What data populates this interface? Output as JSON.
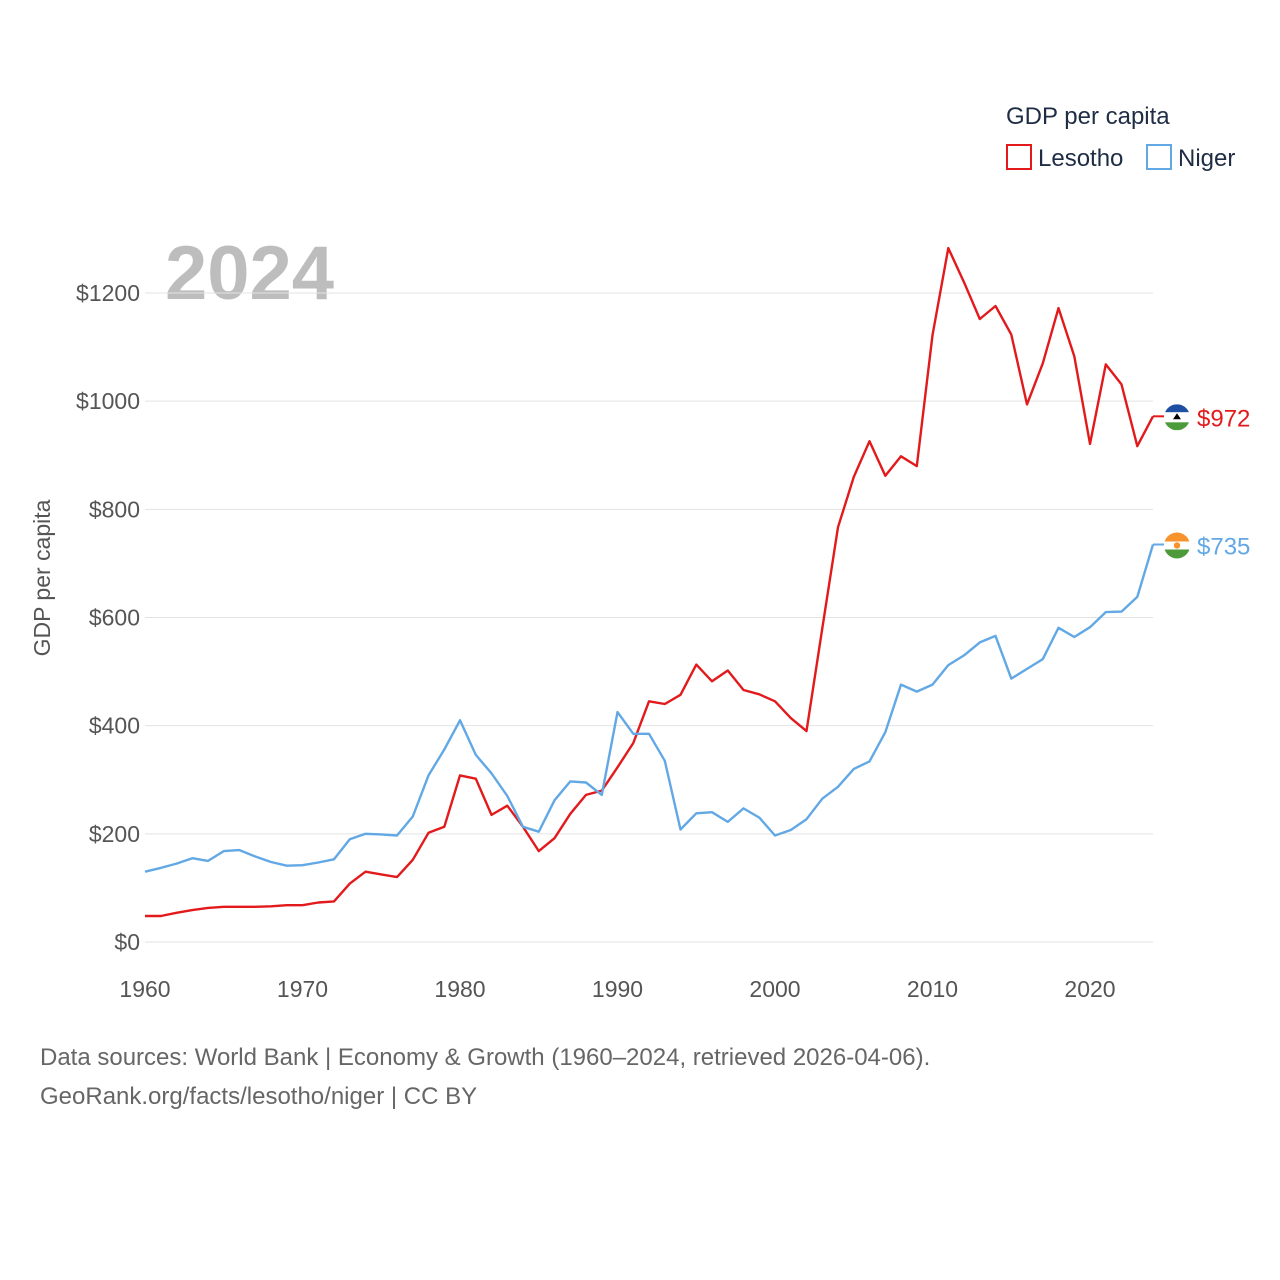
{
  "chart_data": {
    "type": "line",
    "watermark_year": "2024",
    "legend": {
      "title": "GDP per capita",
      "placement": "top-right"
    },
    "ylabel": "GDP per capita",
    "xlabel": "",
    "xlim": [
      1960,
      2024
    ],
    "ylim": [
      0,
      1300
    ],
    "xticks": [
      1960,
      1970,
      1980,
      1990,
      2000,
      2010,
      2020
    ],
    "xtick_labels": [
      "1960",
      "1970",
      "1980",
      "1990",
      "2000",
      "2010",
      "2020"
    ],
    "yticks": [
      0,
      200,
      400,
      600,
      800,
      1000,
      1200
    ],
    "ytick_labels": [
      "$0",
      "$200",
      "$400",
      "$600",
      "$800",
      "$1000",
      "$1200"
    ],
    "grid": true,
    "x": [
      1960,
      1961,
      1962,
      1963,
      1964,
      1965,
      1966,
      1967,
      1968,
      1969,
      1970,
      1971,
      1972,
      1973,
      1974,
      1975,
      1976,
      1977,
      1978,
      1979,
      1980,
      1981,
      1982,
      1983,
      1984,
      1985,
      1986,
      1987,
      1988,
      1989,
      1990,
      1991,
      1992,
      1993,
      1994,
      1995,
      1996,
      1997,
      1998,
      1999,
      2000,
      2001,
      2002,
      2003,
      2004,
      2005,
      2006,
      2007,
      2008,
      2009,
      2010,
      2011,
      2012,
      2013,
      2014,
      2015,
      2016,
      2017,
      2018,
      2019,
      2020,
      2021,
      2022,
      2023,
      2024
    ],
    "series": [
      {
        "name": "Lesotho",
        "color": "#e31a1c",
        "end_label": "$972",
        "flag": "lesotho-flag-icon",
        "values": [
          48,
          48,
          54,
          59,
          63,
          65,
          65,
          65,
          66,
          68,
          68,
          73,
          75,
          108,
          130,
          125,
          120,
          152,
          202,
          213,
          308,
          302,
          235,
          252,
          213,
          168,
          192,
          237,
          272,
          280,
          323,
          368,
          445,
          440,
          457,
          513,
          482,
          502,
          466,
          458,
          445,
          414,
          390,
          580,
          767,
          860,
          926,
          862,
          898,
          880,
          1122,
          1283,
          1220,
          1152,
          1176,
          1123,
          994,
          1070,
          1172,
          1083,
          921,
          1068,
          1031,
          917,
          972
        ]
      },
      {
        "name": "Niger",
        "color": "#62a8e5",
        "end_label": "$735",
        "flag": "niger-flag-icon",
        "values": [
          130,
          137,
          145,
          155,
          150,
          168,
          170,
          158,
          148,
          141,
          142,
          147,
          153,
          190,
          200,
          199,
          197,
          232,
          308,
          356,
          410,
          346,
          312,
          270,
          213,
          204,
          262,
          297,
          295,
          272,
          425,
          385,
          385,
          335,
          208,
          238,
          240,
          222,
          247,
          230,
          197,
          207,
          227,
          265,
          287,
          320,
          334,
          388,
          476,
          463,
          476,
          512,
          530,
          554,
          566,
          487,
          505,
          523,
          581,
          564,
          582,
          610,
          611,
          638,
          735
        ]
      }
    ]
  },
  "footer": {
    "line1": "Data sources: World Bank | Economy & Growth (1960–2024, retrieved 2026-04-06).",
    "line2": "GeoRank.org/facts/lesotho/niger | CC BY"
  }
}
